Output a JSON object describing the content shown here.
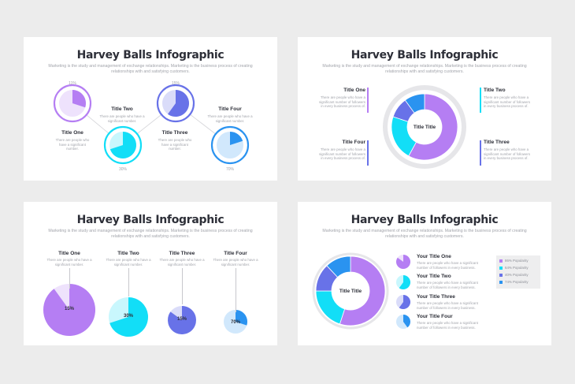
{
  "colors": {
    "purple": "#b57ef3",
    "purple_light": "#eee2fc",
    "cyan": "#12def7",
    "cyan_light": "#c9f7fd",
    "indigo": "#6872e8",
    "indigo_light": "#dadcf9",
    "blue": "#2a93f0",
    "blue_light": "#d1e8fc",
    "ring_gray": "#e6e6e9"
  },
  "common": {
    "title": "Harvey Balls Infographic",
    "subtitle": "Marketing is the study and management of exchange relationships. Marketing is the business process of creating relationships with and satisfying customers."
  },
  "slide1": {
    "items": [
      {
        "label": "Title One",
        "text": "There are people who have a significant number.",
        "pct": "11%",
        "value": 0.3,
        "icon": "purple-harvey-ball"
      },
      {
        "label": "Title Two",
        "text": "There are people who have a significant number.",
        "pct": "30%",
        "value": 0.7,
        "icon": "cyan-harvey-ball"
      },
      {
        "label": "Title Three",
        "text": "There are people who have a significant number.",
        "pct": "15%",
        "value": 0.6,
        "icon": "indigo-harvey-ball"
      },
      {
        "label": "Title Four",
        "text": "There are people who have a significant number.",
        "pct": "70%",
        "value": 0.2,
        "icon": "blue-harvey-ball"
      }
    ]
  },
  "slide2": {
    "center": "Title Title",
    "items": [
      {
        "label": "Title One",
        "text": "There are people who have a significant number of followers in every business process of."
      },
      {
        "label": "Title Two",
        "text": "There are people who have a significant number of followers in every business process of."
      },
      {
        "label": "Title Four",
        "text": "There are people who have a significant number of followers in every business process of."
      },
      {
        "label": "Title Three",
        "text": "There are people who have a significant number of followers in every business process of."
      }
    ],
    "donut": [
      {
        "name": "purple",
        "value": 58
      },
      {
        "name": "cyan",
        "value": 22
      },
      {
        "name": "indigo",
        "value": 10
      },
      {
        "name": "blue",
        "value": 10
      }
    ]
  },
  "slide3": {
    "items": [
      {
        "label": "Title One",
        "text": "There are people who have a significant number.",
        "pct": "15%",
        "value": 0.9
      },
      {
        "label": "Title Two",
        "text": "There are people who have a significant number.",
        "pct": "30%",
        "value": 0.7
      },
      {
        "label": "Title Three",
        "text": "There are people who have a significant number.",
        "pct": "15%",
        "value": 0.85
      },
      {
        "label": "Title Four",
        "text": "There are people who have a significant number.",
        "pct": "70%",
        "value": 0.3
      }
    ]
  },
  "slide4": {
    "center": "Title Title",
    "items": [
      {
        "label": "Your Title One",
        "text": "There are people who have a significant number of followers in every business.",
        "value": 0.85
      },
      {
        "label": "Your Title Two",
        "text": "There are people who have a significant number of followers in every business.",
        "value": 0.6
      },
      {
        "label": "Your Title Three",
        "text": "There are people who have a significant number of followers in every business.",
        "value": 0.6
      },
      {
        "label": "Your Title Four",
        "text": "There are people who have a significant number of followers in every business.",
        "value": 0.4
      }
    ],
    "legend": [
      {
        "label": "86% Popularity"
      },
      {
        "label": "64% Popularity"
      },
      {
        "label": "40% Popularity"
      },
      {
        "label": "74% Popularity"
      }
    ],
    "donut": [
      {
        "name": "purple",
        "value": 55
      },
      {
        "name": "cyan",
        "value": 20
      },
      {
        "name": "indigo",
        "value": 13
      },
      {
        "name": "blue",
        "value": 12
      }
    ]
  }
}
